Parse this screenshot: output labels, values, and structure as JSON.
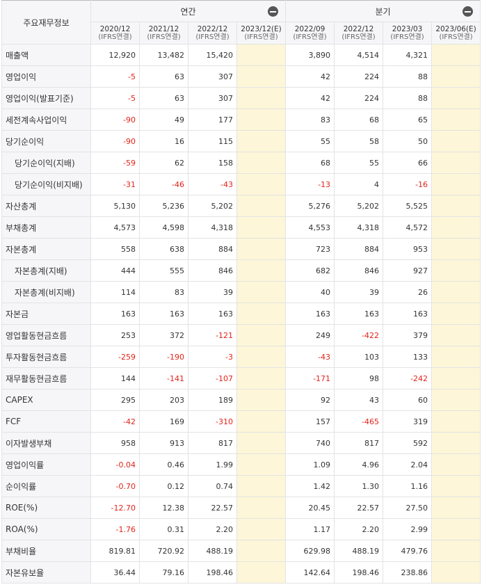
{
  "header": {
    "corner": "주요재무정보",
    "annual_label": "연간",
    "quarter_label": "분기",
    "periods": [
      {
        "date": "2020/12",
        "basis": "(IFRS연결)"
      },
      {
        "date": "2021/12",
        "basis": "(IFRS연결)"
      },
      {
        "date": "2022/12",
        "basis": "(IFRS연결)"
      },
      {
        "date": "2023/12(E)",
        "basis": "(IFRS연결)"
      },
      {
        "date": "2022/09",
        "basis": "(IFRS연결)"
      },
      {
        "date": "2022/12",
        "basis": "(IFRS연결)"
      },
      {
        "date": "2023/03",
        "basis": "(IFRS연결)"
      },
      {
        "date": "2023/06(E)",
        "basis": "(IFRS연결)"
      }
    ]
  },
  "rows": [
    {
      "label": "매출액",
      "values": [
        "12,920",
        "13,482",
        "15,420",
        "",
        "3,890",
        "4,514",
        "4,321",
        ""
      ]
    },
    {
      "label": "영업이익",
      "values": [
        "-5",
        "63",
        "307",
        "",
        "42",
        "224",
        "88",
        ""
      ]
    },
    {
      "label": "영업이익(발표기준)",
      "values": [
        "-5",
        "63",
        "307",
        "",
        "42",
        "224",
        "88",
        ""
      ]
    },
    {
      "label": "세전계속사업이익",
      "values": [
        "-90",
        "49",
        "177",
        "",
        "83",
        "68",
        "65",
        ""
      ]
    },
    {
      "label": "당기순이익",
      "values": [
        "-90",
        "16",
        "115",
        "",
        "55",
        "58",
        "50",
        ""
      ]
    },
    {
      "label": "당기순이익(지배)",
      "sub": true,
      "values": [
        "-59",
        "62",
        "158",
        "",
        "68",
        "55",
        "66",
        ""
      ]
    },
    {
      "label": "당기순이익(비지배)",
      "sub": true,
      "values": [
        "-31",
        "-46",
        "-43",
        "",
        "-13",
        "4",
        "-16",
        ""
      ]
    },
    {
      "label": "자산총계",
      "values": [
        "5,130",
        "5,236",
        "5,202",
        "",
        "5,276",
        "5,202",
        "5,525",
        ""
      ]
    },
    {
      "label": "부채총계",
      "values": [
        "4,573",
        "4,598",
        "4,318",
        "",
        "4,553",
        "4,318",
        "4,572",
        ""
      ]
    },
    {
      "label": "자본총계",
      "values": [
        "558",
        "638",
        "884",
        "",
        "723",
        "884",
        "953",
        ""
      ]
    },
    {
      "label": "자본총계(지배)",
      "sub": true,
      "values": [
        "444",
        "555",
        "846",
        "",
        "682",
        "846",
        "927",
        ""
      ]
    },
    {
      "label": "자본총계(비지배)",
      "sub": true,
      "values": [
        "114",
        "83",
        "39",
        "",
        "40",
        "39",
        "26",
        ""
      ]
    },
    {
      "label": "자본금",
      "values": [
        "163",
        "163",
        "163",
        "",
        "163",
        "163",
        "163",
        ""
      ]
    },
    {
      "label": "영업활동현금흐름",
      "values": [
        "253",
        "372",
        "-121",
        "",
        "249",
        "-422",
        "379",
        ""
      ]
    },
    {
      "label": "투자활동현금흐름",
      "values": [
        "-259",
        "-190",
        "-3",
        "",
        "-43",
        "103",
        "133",
        ""
      ]
    },
    {
      "label": "재무활동현금흐름",
      "values": [
        "144",
        "-141",
        "-107",
        "",
        "-171",
        "98",
        "-242",
        ""
      ]
    },
    {
      "label": "CAPEX",
      "values": [
        "295",
        "203",
        "189",
        "",
        "92",
        "43",
        "60",
        ""
      ]
    },
    {
      "label": "FCF",
      "values": [
        "-42",
        "169",
        "-310",
        "",
        "157",
        "-465",
        "319",
        ""
      ]
    },
    {
      "label": "이자발생부채",
      "values": [
        "958",
        "913",
        "817",
        "",
        "740",
        "817",
        "592",
        ""
      ]
    },
    {
      "label": "영업이익률",
      "values": [
        "-0.04",
        "0.46",
        "1.99",
        "",
        "1.09",
        "4.96",
        "2.04",
        ""
      ]
    },
    {
      "label": "순이익률",
      "values": [
        "-0.70",
        "0.12",
        "0.74",
        "",
        "1.42",
        "1.30",
        "1.16",
        ""
      ]
    },
    {
      "label": "ROE(%)",
      "values": [
        "-12.70",
        "12.38",
        "22.57",
        "",
        "20.45",
        "22.57",
        "27.50",
        ""
      ]
    },
    {
      "label": "ROA(%)",
      "values": [
        "-1.76",
        "0.31",
        "2.20",
        "",
        "1.17",
        "2.20",
        "2.99",
        ""
      ]
    },
    {
      "label": "부채비율",
      "values": [
        "819.81",
        "720.92",
        "488.19",
        "",
        "629.98",
        "488.19",
        "479.76",
        ""
      ]
    },
    {
      "label": "자본유보율",
      "values": [
        "36.44",
        "79.16",
        "198.46",
        "",
        "142.64",
        "198.46",
        "238.86",
        ""
      ]
    }
  ],
  "colors": {
    "negative": "#e2231a",
    "estimate_bg": "#fdf6d8",
    "header_bg": "#f6f6f8"
  },
  "icons": {
    "collapse": "minus-circle-icon"
  }
}
